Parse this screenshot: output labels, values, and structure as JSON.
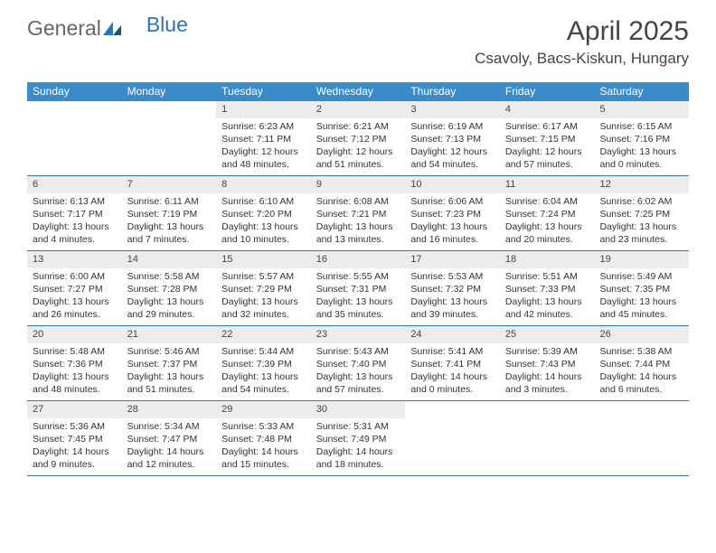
{
  "logo": {
    "text1": "General",
    "text2": "Blue"
  },
  "title": "April 2025",
  "location": "Csavoly, Bacs-Kiskun, Hungary",
  "colors": {
    "accent": "#3b8bc9",
    "border": "#2e75b6",
    "daynum_bg": "#ececec",
    "text": "#333333",
    "bg": "#ffffff"
  },
  "day_names": [
    "Sunday",
    "Monday",
    "Tuesday",
    "Wednesday",
    "Thursday",
    "Friday",
    "Saturday"
  ],
  "labels": {
    "sunrise": "Sunrise: ",
    "sunset": "Sunset: ",
    "daylight": "Daylight: "
  },
  "weeks": [
    [
      {
        "empty": true
      },
      {
        "empty": true
      },
      {
        "day": "1",
        "sunrise": "6:23 AM",
        "sunset": "7:11 PM",
        "daylight": "12 hours and 48 minutes."
      },
      {
        "day": "2",
        "sunrise": "6:21 AM",
        "sunset": "7:12 PM",
        "daylight": "12 hours and 51 minutes."
      },
      {
        "day": "3",
        "sunrise": "6:19 AM",
        "sunset": "7:13 PM",
        "daylight": "12 hours and 54 minutes."
      },
      {
        "day": "4",
        "sunrise": "6:17 AM",
        "sunset": "7:15 PM",
        "daylight": "12 hours and 57 minutes."
      },
      {
        "day": "5",
        "sunrise": "6:15 AM",
        "sunset": "7:16 PM",
        "daylight": "13 hours and 0 minutes."
      }
    ],
    [
      {
        "day": "6",
        "sunrise": "6:13 AM",
        "sunset": "7:17 PM",
        "daylight": "13 hours and 4 minutes."
      },
      {
        "day": "7",
        "sunrise": "6:11 AM",
        "sunset": "7:19 PM",
        "daylight": "13 hours and 7 minutes."
      },
      {
        "day": "8",
        "sunrise": "6:10 AM",
        "sunset": "7:20 PM",
        "daylight": "13 hours and 10 minutes."
      },
      {
        "day": "9",
        "sunrise": "6:08 AM",
        "sunset": "7:21 PM",
        "daylight": "13 hours and 13 minutes."
      },
      {
        "day": "10",
        "sunrise": "6:06 AM",
        "sunset": "7:23 PM",
        "daylight": "13 hours and 16 minutes."
      },
      {
        "day": "11",
        "sunrise": "6:04 AM",
        "sunset": "7:24 PM",
        "daylight": "13 hours and 20 minutes."
      },
      {
        "day": "12",
        "sunrise": "6:02 AM",
        "sunset": "7:25 PM",
        "daylight": "13 hours and 23 minutes."
      }
    ],
    [
      {
        "day": "13",
        "sunrise": "6:00 AM",
        "sunset": "7:27 PM",
        "daylight": "13 hours and 26 minutes."
      },
      {
        "day": "14",
        "sunrise": "5:58 AM",
        "sunset": "7:28 PM",
        "daylight": "13 hours and 29 minutes."
      },
      {
        "day": "15",
        "sunrise": "5:57 AM",
        "sunset": "7:29 PM",
        "daylight": "13 hours and 32 minutes."
      },
      {
        "day": "16",
        "sunrise": "5:55 AM",
        "sunset": "7:31 PM",
        "daylight": "13 hours and 35 minutes."
      },
      {
        "day": "17",
        "sunrise": "5:53 AM",
        "sunset": "7:32 PM",
        "daylight": "13 hours and 39 minutes."
      },
      {
        "day": "18",
        "sunrise": "5:51 AM",
        "sunset": "7:33 PM",
        "daylight": "13 hours and 42 minutes."
      },
      {
        "day": "19",
        "sunrise": "5:49 AM",
        "sunset": "7:35 PM",
        "daylight": "13 hours and 45 minutes."
      }
    ],
    [
      {
        "day": "20",
        "sunrise": "5:48 AM",
        "sunset": "7:36 PM",
        "daylight": "13 hours and 48 minutes."
      },
      {
        "day": "21",
        "sunrise": "5:46 AM",
        "sunset": "7:37 PM",
        "daylight": "13 hours and 51 minutes."
      },
      {
        "day": "22",
        "sunrise": "5:44 AM",
        "sunset": "7:39 PM",
        "daylight": "13 hours and 54 minutes."
      },
      {
        "day": "23",
        "sunrise": "5:43 AM",
        "sunset": "7:40 PM",
        "daylight": "13 hours and 57 minutes."
      },
      {
        "day": "24",
        "sunrise": "5:41 AM",
        "sunset": "7:41 PM",
        "daylight": "14 hours and 0 minutes."
      },
      {
        "day": "25",
        "sunrise": "5:39 AM",
        "sunset": "7:43 PM",
        "daylight": "14 hours and 3 minutes."
      },
      {
        "day": "26",
        "sunrise": "5:38 AM",
        "sunset": "7:44 PM",
        "daylight": "14 hours and 6 minutes."
      }
    ],
    [
      {
        "day": "27",
        "sunrise": "5:36 AM",
        "sunset": "7:45 PM",
        "daylight": "14 hours and 9 minutes."
      },
      {
        "day": "28",
        "sunrise": "5:34 AM",
        "sunset": "7:47 PM",
        "daylight": "14 hours and 12 minutes."
      },
      {
        "day": "29",
        "sunrise": "5:33 AM",
        "sunset": "7:48 PM",
        "daylight": "14 hours and 15 minutes."
      },
      {
        "day": "30",
        "sunrise": "5:31 AM",
        "sunset": "7:49 PM",
        "daylight": "14 hours and 18 minutes."
      },
      {
        "empty": true
      },
      {
        "empty": true
      },
      {
        "empty": true
      }
    ]
  ]
}
